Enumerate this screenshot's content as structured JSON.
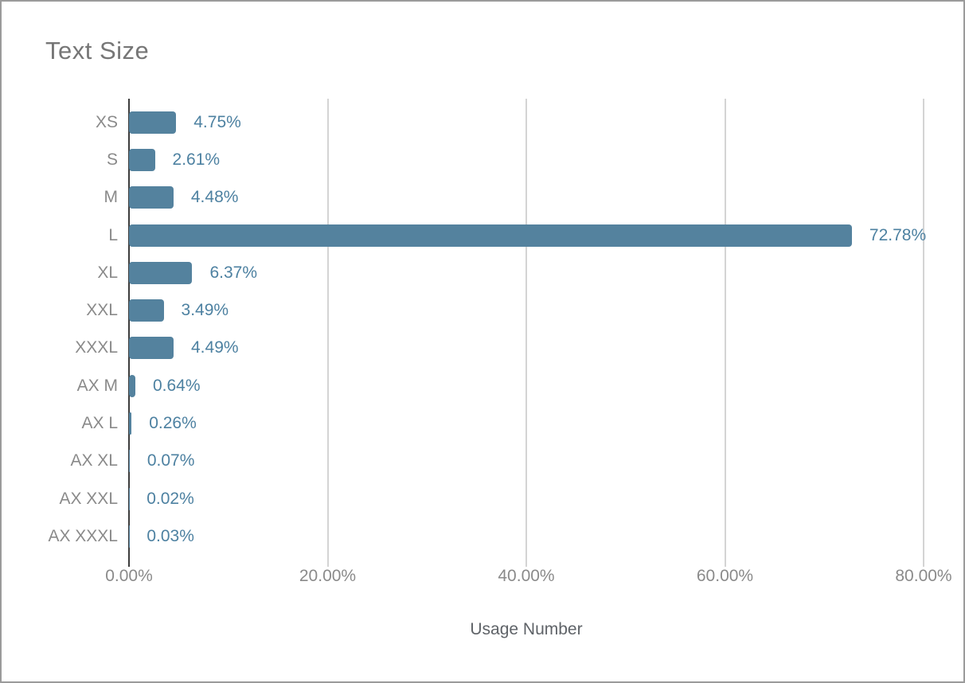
{
  "chart_data": {
    "type": "bar",
    "orientation": "horizontal",
    "title": "Text Size",
    "xlabel": "Usage Number",
    "categories": [
      "XS",
      "S",
      "M",
      "L",
      "XL",
      "XXL",
      "XXXL",
      "AX M",
      "AX L",
      "AX XL",
      "AX XXL",
      "AX XXXL"
    ],
    "values": [
      4.75,
      2.61,
      4.48,
      72.78,
      6.37,
      3.49,
      4.49,
      0.64,
      0.26,
      0.07,
      0.02,
      0.03
    ],
    "value_labels": [
      "4.75%",
      "2.61%",
      "4.48%",
      "72.78%",
      "6.37%",
      "3.49%",
      "4.49%",
      "0.64%",
      "0.26%",
      "0.07%",
      "0.02%",
      "0.03%"
    ],
    "x_tick_labels": [
      "0.00%",
      "20.00%",
      "40.00%",
      "60.00%",
      "80.00%"
    ],
    "x_tick_values": [
      0,
      20,
      40,
      60,
      80
    ],
    "xlim": [
      0,
      84
    ],
    "grid": "vertical-only",
    "legend": "none",
    "colors": {
      "bar": "#54829e",
      "value_label": "#4d81a1",
      "category_label": "#8a8a8a",
      "tick_label": "#8a8a8a",
      "axis_line": "#3d3d3d",
      "gridline": "#d4d4d4",
      "title": "#767676",
      "axis_title": "#5f6368",
      "frame_border": "#9b9b9b",
      "background": "#ffffff"
    }
  }
}
